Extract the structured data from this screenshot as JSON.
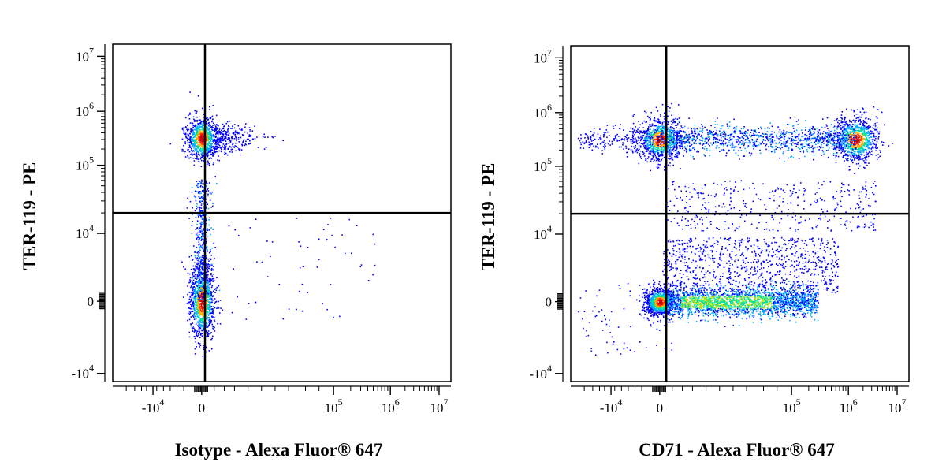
{
  "chart_data": [
    {
      "type": "scatter",
      "title": "",
      "xlabel": "Isotype - Alexa Fluor® 647",
      "ylabel": "TER-119 - PE",
      "x_scale": "biexponential",
      "y_scale": "biexponential",
      "xlim": [
        -100000,
        10000000
      ],
      "ylim": [
        -10000,
        10000000
      ],
      "x_ticks": [
        {
          "value": -10000,
          "base": "-10",
          "exp": "4"
        },
        {
          "value": 0,
          "base": "0",
          "exp": ""
        },
        {
          "value": 100000,
          "base": "10",
          "exp": "5"
        },
        {
          "value": 1000000,
          "base": "10",
          "exp": "6"
        },
        {
          "value": 10000000,
          "base": "10",
          "exp": "7"
        }
      ],
      "y_ticks": [
        {
          "value": -10000,
          "base": "-10",
          "exp": "4"
        },
        {
          "value": 0,
          "base": "0",
          "exp": ""
        },
        {
          "value": 10000,
          "base": "10",
          "exp": "4"
        },
        {
          "value": 100000,
          "base": "10",
          "exp": "5"
        },
        {
          "value": 1000000,
          "base": "10",
          "exp": "6"
        },
        {
          "value": 10000000,
          "base": "10",
          "exp": "7"
        }
      ],
      "quadrant_gate": {
        "x": 2500,
        "y": 20000
      },
      "populations": [
        {
          "x_center": 0,
          "y_center": 320000,
          "relative_density": "high"
        },
        {
          "x_center": 0,
          "y_center": 0,
          "relative_density": "high"
        }
      ]
    },
    {
      "type": "scatter",
      "title": "",
      "xlabel": "CD71 - Alexa Fluor® 647",
      "ylabel": "TER-119 - PE",
      "x_scale": "biexponential",
      "y_scale": "biexponential",
      "xlim": [
        -100000,
        10000000
      ],
      "ylim": [
        -10000,
        10000000
      ],
      "x_ticks": [
        {
          "value": -10000,
          "base": "-10",
          "exp": "4"
        },
        {
          "value": 0,
          "base": "0",
          "exp": ""
        },
        {
          "value": 100000,
          "base": "10",
          "exp": "5"
        },
        {
          "value": 1000000,
          "base": "10",
          "exp": "6"
        },
        {
          "value": 10000000,
          "base": "10",
          "exp": "7"
        }
      ],
      "y_ticks": [
        {
          "value": -10000,
          "base": "-10",
          "exp": "4"
        },
        {
          "value": 0,
          "base": "0",
          "exp": ""
        },
        {
          "value": 10000,
          "base": "10",
          "exp": "4"
        },
        {
          "value": 100000,
          "base": "10",
          "exp": "5"
        },
        {
          "value": 1000000,
          "base": "10",
          "exp": "6"
        },
        {
          "value": 10000000,
          "base": "10",
          "exp": "7"
        }
      ],
      "quadrant_gate": {
        "x": 5000,
        "y": 20000
      },
      "populations": [
        {
          "x_center": 0,
          "y_center": 320000,
          "relative_density": "high"
        },
        {
          "x_center": 1400000,
          "y_center": 320000,
          "relative_density": "high"
        },
        {
          "x_center": 0,
          "y_center": 0,
          "relative_density": "high"
        },
        {
          "x_center": 40000,
          "y_center": 0,
          "relative_density": "medium"
        }
      ]
    }
  ],
  "colors": {
    "density_scale": [
      "#0000ff",
      "#00aaff",
      "#00e0a0",
      "#c8e000",
      "#ffb000",
      "#ff3000",
      "#cc0000"
    ],
    "gate_line": "#000000"
  }
}
